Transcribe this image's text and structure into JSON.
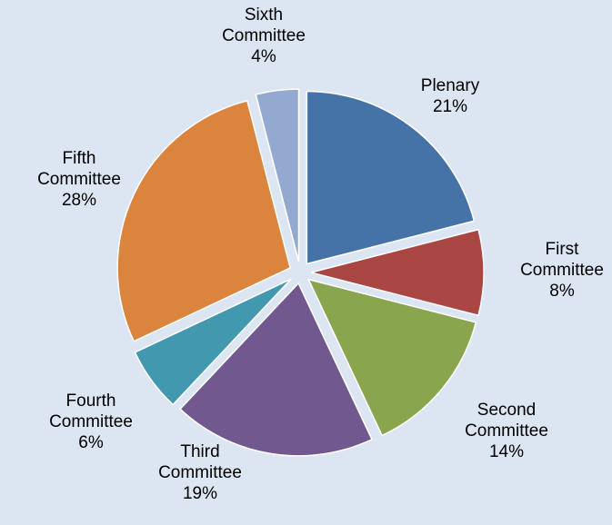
{
  "chart_data": {
    "type": "pie",
    "title": "",
    "series": [
      {
        "values": [
          21,
          8,
          14,
          19,
          6,
          28,
          4
        ],
        "categories": [
          "Plenary",
          "First Committee",
          "Second Committee",
          "Third Committee",
          "Fourth Committee",
          "Fifth Committee",
          "Sixth Committee"
        ]
      }
    ],
    "slices": [
      {
        "label": "Plenary",
        "percent": "21%",
        "value": 21,
        "color": "#4572a7"
      },
      {
        "label": "First Committee",
        "percent": "8%",
        "value": 8,
        "color": "#aa4643"
      },
      {
        "label": "Second Committee",
        "percent": "14%",
        "value": 14,
        "color": "#89a54e"
      },
      {
        "label": "Third Committee",
        "percent": "19%",
        "value": 19,
        "color": "#71588f"
      },
      {
        "label": "Fourth Committee",
        "percent": "6%",
        "value": 6,
        "color": "#4198af"
      },
      {
        "label": "Fifth Committee",
        "percent": "28%",
        "value": 28,
        "color": "#db843d"
      },
      {
        "label": "Sixth Committee",
        "percent": "4%",
        "value": 4,
        "color": "#93a9cf"
      }
    ],
    "start_angle": "12 o'clock",
    "direction": "clockwise",
    "exploded": true,
    "legend": "none (labels outside slices)",
    "background_color": "#dce6f2"
  }
}
